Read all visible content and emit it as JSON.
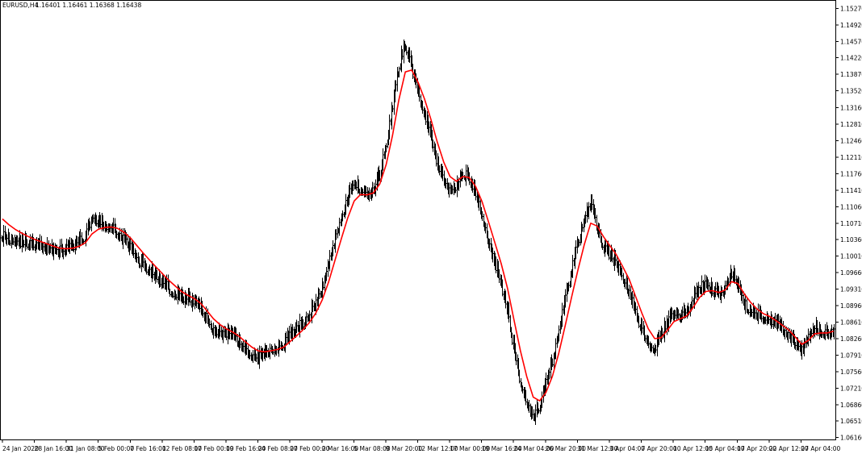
{
  "chart_info": {
    "symbol_timeframe": "EURUSD,H4",
    "ohlc_readout": "1.16401 1.16461 1.16368 1.16438"
  },
  "colors": {
    "background": "#ffffff",
    "bars": "#000000",
    "moving_average": "#ff0000",
    "axis": "#000000"
  },
  "chart_data": {
    "type": "line",
    "ylim": [
      1.0612,
      1.1543
    ],
    "y_ticks": [
      "1.15270",
      "1.14920",
      "1.14570",
      "1.14220",
      "1.13870",
      "1.13520",
      "1.13160",
      "1.12810",
      "1.12460",
      "1.12110",
      "1.11760",
      "1.11410",
      "1.11060",
      "1.10710",
      "1.10360",
      "1.10010",
      "1.09660",
      "1.09310",
      "1.08960",
      "1.08610",
      "1.08260",
      "1.07910",
      "1.07560",
      "1.07210",
      "1.06860",
      "1.06510",
      "1.06160"
    ],
    "x_ticks": [
      "24 Jan 2020",
      "28 Jan 16:00",
      "31 Jan 08:00",
      "5 Feb 00:00",
      "7 Feb 16:00",
      "12 Feb 08:00",
      "17 Feb 00:00",
      "19 Feb 16:00",
      "24 Feb 08:00",
      "27 Feb 00:00",
      "2 Mar 16:00",
      "5 Mar 08:00",
      "9 Mar 20:00",
      "12 Mar 12:00",
      "17 Mar 00:00",
      "19 Mar 16:00",
      "24 Mar 04:00",
      "26 Mar 20:00",
      "31 Mar 12:00",
      "3 Apr 04:00",
      "7 Apr 20:00",
      "10 Apr 12:00",
      "15 Apr 04:00",
      "17 Apr 20:00",
      "22 Apr 12:00",
      "27 Apr 04:00"
    ],
    "series": [
      {
        "kind": "close",
        "values": [
          1.1045,
          1.1038,
          1.1035,
          1.1032,
          1.1028,
          1.1025,
          1.1022,
          1.1018,
          1.1015,
          1.1012,
          1.1016,
          1.1021,
          1.103,
          1.1045,
          1.1085,
          1.1072,
          1.1065,
          1.106,
          1.105,
          1.1035,
          1.1018,
          1.0995,
          1.0982,
          1.097,
          1.0958,
          1.0945,
          1.0932,
          1.0922,
          1.0912,
          1.0908,
          1.0905,
          1.089,
          1.0865,
          1.0845,
          1.0838,
          1.0835,
          1.083,
          1.0818,
          1.08,
          1.079,
          1.0786,
          1.0795,
          1.0805,
          1.0808,
          1.0815,
          1.0835,
          1.0848,
          1.086,
          1.0878,
          1.09,
          1.0935,
          1.0985,
          1.104,
          1.1085,
          1.1125,
          1.1155,
          1.1145,
          1.113,
          1.114,
          1.1175,
          1.124,
          1.132,
          1.141,
          1.145,
          1.14,
          1.1345,
          1.13,
          1.125,
          1.1195,
          1.116,
          1.114,
          1.115,
          1.118,
          1.1165,
          1.113,
          1.1085,
          1.103,
          1.0985,
          1.094,
          1.088,
          1.08,
          1.0735,
          1.069,
          1.066,
          1.0685,
          1.073,
          1.078,
          1.0845,
          1.091,
          1.0975,
          1.103,
          1.108,
          1.1115,
          1.106,
          1.102,
          1.1005,
          1.0985,
          1.0955,
          1.0925,
          1.088,
          1.0845,
          1.0815,
          1.0805,
          1.083,
          1.086,
          1.088,
          1.0875,
          1.088,
          1.091,
          1.0935,
          1.094,
          1.093,
          1.092,
          1.0935,
          1.0965,
          1.094,
          1.09,
          1.0885,
          1.0875,
          1.087,
          1.0868,
          1.0855,
          1.0845,
          1.0835,
          1.0815,
          1.08,
          1.083,
          1.085,
          1.084,
          1.0838,
          1.0845
        ]
      },
      {
        "kind": "moving_average",
        "values": [
          1.108,
          1.1068,
          1.1058,
          1.105,
          1.1043,
          1.1037,
          1.1032,
          1.1027,
          1.1022,
          1.1018,
          1.1017,
          1.1018,
          1.1022,
          1.103,
          1.1048,
          1.1058,
          1.1062,
          1.1063,
          1.106,
          1.1052,
          1.104,
          1.1024,
          1.1008,
          1.0993,
          1.0978,
          1.0964,
          1.095,
          1.0938,
          1.0926,
          1.0918,
          1.0911,
          1.0901,
          1.0885,
          1.0868,
          1.0856,
          1.0847,
          1.084,
          1.0831,
          1.0819,
          1.0808,
          1.08,
          1.0798,
          1.08,
          1.0803,
          1.0808,
          1.082,
          1.0832,
          1.0845,
          1.086,
          1.088,
          1.0908,
          1.0946,
          1.0992,
          1.1038,
          1.1082,
          1.1118,
          1.1132,
          1.1131,
          1.1135,
          1.1154,
          1.1195,
          1.1257,
          1.1333,
          1.1392,
          1.1396,
          1.137,
          1.1335,
          1.1292,
          1.1243,
          1.1201,
          1.117,
          1.116,
          1.117,
          1.1168,
          1.1149,
          1.1117,
          1.1074,
          1.103,
          1.0985,
          1.0932,
          1.0866,
          1.08,
          1.0745,
          1.0702,
          1.0694,
          1.0712,
          1.0746,
          1.0795,
          1.0853,
          1.0914,
          1.0972,
          1.1026,
          1.1071,
          1.1065,
          1.1042,
          1.1023,
          1.1004,
          1.0979,
          1.0952,
          1.0916,
          1.088,
          1.0847,
          1.0826,
          1.0828,
          1.0844,
          1.0862,
          1.0868,
          1.0874,
          1.0892,
          1.0913,
          1.0926,
          1.0928,
          1.0924,
          1.0929,
          1.0947,
          1.0943,
          1.0921,
          1.0903,
          1.0889,
          1.0879,
          1.0873,
          1.0864,
          1.0854,
          1.0844,
          1.0829,
          1.0814,
          1.0822,
          1.0836,
          1.0838,
          1.0838,
          1.0842
        ]
      }
    ]
  }
}
